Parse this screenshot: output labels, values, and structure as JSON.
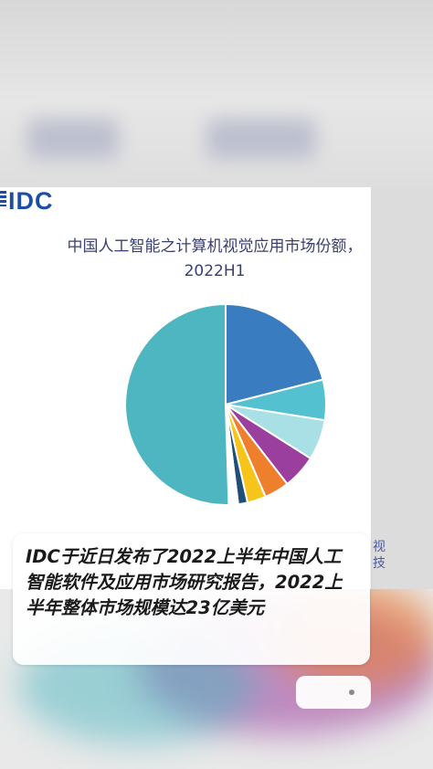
{
  "logo": {
    "text": "IDC"
  },
  "chart_data": {
    "type": "pie",
    "title": "中国人工智能之计算机视觉应用市场份额，",
    "subtitle": "2022H1",
    "slices": [
      {
        "value": 21.0,
        "color": "#3a7cc0"
      },
      {
        "value": 6.5,
        "color": "#53c1cf"
      },
      {
        "value": 6.5,
        "color": "#a8e0e5"
      },
      {
        "value": 5.5,
        "color": "#9b3f9f"
      },
      {
        "value": 4.0,
        "color": "#ee7f2d"
      },
      {
        "value": 3.0,
        "color": "#f7c419"
      },
      {
        "value": 1.5,
        "color": "#1f4e79"
      },
      {
        "value": 1.5,
        "color": "#ffffff"
      },
      {
        "value": 50.5,
        "color": "#4db6c1"
      }
    ]
  },
  "caption": {
    "text": "IDC于近日发布了2022上半年中国人工智能软件及应用市场研究报告，2022上半年整体市场规模达23亿美元"
  },
  "side_fragments": [
    "视",
    "技"
  ]
}
